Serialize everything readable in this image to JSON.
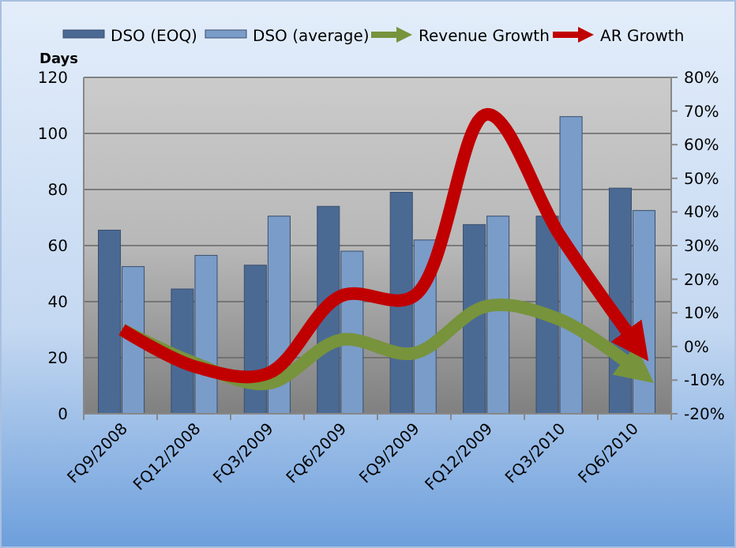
{
  "chart_data": {
    "type": "bar",
    "ylabel": "Days",
    "categories": [
      "FQ9/2008",
      "FQ12/2008",
      "FQ3/2009",
      "FQ6/2009",
      "FQ9/2009",
      "FQ12/2009",
      "FQ3/2010",
      "FQ6/2010"
    ],
    "series": [
      {
        "name": "DSO (EOQ)",
        "color": "#4a6a94",
        "values": [
          65.5,
          44.5,
          53,
          74,
          79,
          67.5,
          70.5,
          80.5
        ]
      },
      {
        "name": "DSO (average)",
        "color": "#7a9cc8",
        "values": [
          52.5,
          56.5,
          70.5,
          58,
          62,
          70.5,
          106,
          72.5
        ]
      },
      {
        "name": "Revenue Growth",
        "type": "line",
        "axis": "y2",
        "color": "#77933c",
        "values": [
          5,
          -5,
          -11,
          2,
          -2,
          12,
          8,
          -6
        ]
      },
      {
        "name": "AR Growth",
        "type": "line",
        "axis": "y2",
        "color": "#c00000",
        "values": [
          5,
          -6,
          -8,
          15,
          15,
          69,
          33,
          2
        ]
      }
    ],
    "ylim": [
      0,
      120
    ],
    "yticks": [
      0,
      20,
      40,
      60,
      80,
      100,
      120
    ],
    "y2lim": [
      -20,
      80
    ],
    "y2ticks": [
      {
        "value": -20,
        "label": "-20%"
      },
      {
        "value": -10,
        "label": "-10%"
      },
      {
        "value": 0,
        "label": "0%"
      },
      {
        "value": 10,
        "label": "10%"
      },
      {
        "value": 20,
        "label": "20%"
      },
      {
        "value": 30,
        "label": "30%"
      },
      {
        "value": 40,
        "label": "40%"
      },
      {
        "value": 50,
        "label": "50%"
      },
      {
        "value": 60,
        "label": "60%"
      },
      {
        "value": 70,
        "label": "70%"
      },
      {
        "value": 80,
        "label": "80%"
      }
    ],
    "grid": "y",
    "legend": "top"
  }
}
